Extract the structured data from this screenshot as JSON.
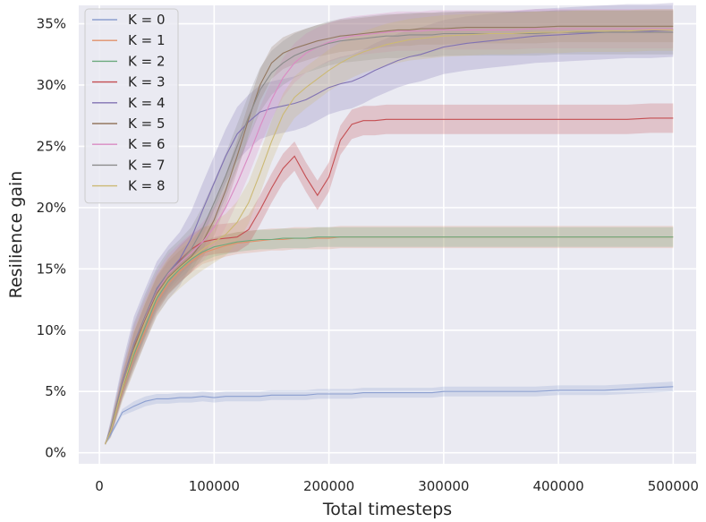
{
  "chart_data": {
    "type": "line",
    "xlabel": "Total timesteps",
    "ylabel": "Resilience gain",
    "xlim": [
      -18000,
      520000
    ],
    "ylim": [
      -0.9,
      36.5
    ],
    "xticks": [
      0,
      100000,
      200000,
      300000,
      400000,
      500000
    ],
    "yticks": [
      0,
      5,
      10,
      15,
      20,
      25,
      30,
      35
    ],
    "ytick_labels": [
      "0%",
      "5%",
      "10%",
      "15%",
      "20%",
      "25%",
      "30%",
      "35%"
    ],
    "grid": true,
    "legend": "top-left",
    "legend_title": "K",
    "x": [
      5000,
      10000,
      20000,
      30000,
      40000,
      50000,
      60000,
      70000,
      80000,
      90000,
      100000,
      110000,
      120000,
      130000,
      140000,
      150000,
      160000,
      170000,
      180000,
      190000,
      200000,
      210000,
      220000,
      230000,
      240000,
      250000,
      260000,
      270000,
      280000,
      290000,
      300000,
      320000,
      340000,
      360000,
      380000,
      400000,
      420000,
      440000,
      460000,
      480000,
      500000
    ],
    "series": [
      {
        "name": "K = 0",
        "color": "#8c9fd0",
        "band": 0.4,
        "values": [
          0.7,
          1.5,
          3.3,
          3.8,
          4.2,
          4.4,
          4.4,
          4.5,
          4.5,
          4.6,
          4.5,
          4.6,
          4.6,
          4.6,
          4.6,
          4.7,
          4.7,
          4.7,
          4.7,
          4.8,
          4.8,
          4.8,
          4.8,
          4.9,
          4.9,
          4.9,
          4.9,
          4.9,
          4.9,
          4.9,
          5.0,
          5.0,
          5.0,
          5.0,
          5.0,
          5.1,
          5.1,
          5.1,
          5.2,
          5.3,
          5.4
        ]
      },
      {
        "name": "K = 1",
        "color": "#e1916a",
        "band": 0.9,
        "values": [
          0.7,
          1.8,
          5.0,
          7.8,
          10.0,
          12.3,
          13.8,
          14.8,
          15.6,
          16.3,
          16.6,
          16.9,
          17.1,
          17.2,
          17.3,
          17.4,
          17.4,
          17.5,
          17.5,
          17.5,
          17.5,
          17.6,
          17.6,
          17.6,
          17.6,
          17.6,
          17.6,
          17.6,
          17.6,
          17.6,
          17.6,
          17.6,
          17.6,
          17.6,
          17.6,
          17.6,
          17.6,
          17.6,
          17.6,
          17.6,
          17.6
        ]
      },
      {
        "name": "K = 2",
        "color": "#6daa7e",
        "band": 0.8,
        "values": [
          0.7,
          1.8,
          5.2,
          8.0,
          10.3,
          12.6,
          14.0,
          15.0,
          15.8,
          16.4,
          16.8,
          17.0,
          17.2,
          17.3,
          17.4,
          17.4,
          17.5,
          17.5,
          17.5,
          17.6,
          17.6,
          17.6,
          17.6,
          17.6,
          17.6,
          17.6,
          17.6,
          17.6,
          17.6,
          17.6,
          17.6,
          17.6,
          17.6,
          17.6,
          17.6,
          17.6,
          17.6,
          17.6,
          17.6,
          17.6,
          17.6
        ]
      },
      {
        "name": "K = 3",
        "color": "#c44e52",
        "band": 1.2,
        "values": [
          0.7,
          1.9,
          5.6,
          8.6,
          11.0,
          13.2,
          14.6,
          15.7,
          16.6,
          17.2,
          17.4,
          17.5,
          17.6,
          18.2,
          19.8,
          21.6,
          23.2,
          24.2,
          22.5,
          21.0,
          22.5,
          25.5,
          26.8,
          27.1,
          27.1,
          27.2,
          27.2,
          27.2,
          27.2,
          27.2,
          27.2,
          27.2,
          27.2,
          27.2,
          27.2,
          27.2,
          27.2,
          27.2,
          27.2,
          27.3,
          27.3
        ]
      },
      {
        "name": "K = 4",
        "color": "#8172b3",
        "band": 2.2,
        "values": [
          0.7,
          2.0,
          5.8,
          8.9,
          11.2,
          13.4,
          14.7,
          15.8,
          17.5,
          19.8,
          22.0,
          24.2,
          26.0,
          27.0,
          27.8,
          28.1,
          28.3,
          28.5,
          28.8,
          29.3,
          29.8,
          30.1,
          30.3,
          30.7,
          31.2,
          31.6,
          32.0,
          32.3,
          32.5,
          32.8,
          33.1,
          33.4,
          33.6,
          33.8,
          34.0,
          34.1,
          34.2,
          34.3,
          34.4,
          34.4,
          34.5
        ]
      },
      {
        "name": "K = 5",
        "color": "#937860",
        "band": 1.3,
        "values": [
          0.7,
          1.9,
          5.4,
          8.5,
          10.9,
          13.0,
          14.3,
          15.2,
          16.0,
          17.2,
          19.0,
          21.4,
          24.2,
          27.2,
          30.0,
          31.8,
          32.6,
          33.0,
          33.3,
          33.6,
          33.8,
          34.0,
          34.1,
          34.2,
          34.3,
          34.4,
          34.5,
          34.5,
          34.6,
          34.6,
          34.6,
          34.7,
          34.7,
          34.7,
          34.7,
          34.8,
          34.8,
          34.8,
          34.8,
          34.8,
          34.8
        ]
      },
      {
        "name": "K = 6",
        "color": "#da8bc3",
        "band": 1.6,
        "values": [
          0.7,
          1.9,
          5.6,
          8.8,
          11.1,
          13.2,
          14.6,
          15.5,
          16.3,
          17.2,
          18.4,
          20.0,
          22.0,
          24.2,
          26.6,
          28.8,
          30.6,
          31.8,
          32.6,
          33.1,
          33.5,
          33.8,
          34.0,
          34.1,
          34.2,
          34.3,
          34.4,
          34.4,
          34.4,
          34.5,
          34.5,
          34.5,
          34.5,
          34.5,
          34.6,
          34.6,
          34.6,
          34.6,
          34.6,
          34.6,
          34.6
        ]
      },
      {
        "name": "K = 7",
        "color": "#8c8c8c",
        "band": 1.8,
        "values": [
          0.7,
          2.0,
          5.7,
          8.8,
          11.2,
          13.3,
          14.7,
          15.6,
          16.6,
          18.3,
          20.4,
          22.6,
          25.0,
          27.4,
          29.6,
          31.0,
          31.8,
          32.4,
          32.8,
          33.1,
          33.4,
          33.6,
          33.7,
          33.8,
          33.9,
          34.0,
          34.0,
          34.1,
          34.1,
          34.1,
          34.2,
          34.2,
          34.2,
          34.2,
          34.2,
          34.3,
          34.3,
          34.3,
          34.3,
          34.3,
          34.3
        ]
      },
      {
        "name": "K = 8",
        "color": "#ccb974",
        "band": 1.7,
        "values": [
          0.7,
          1.8,
          5.3,
          8.3,
          10.7,
          12.8,
          14.2,
          15.1,
          15.9,
          16.6,
          17.2,
          17.8,
          18.8,
          20.4,
          22.8,
          25.4,
          27.6,
          29.0,
          29.8,
          30.5,
          31.2,
          31.8,
          32.3,
          32.7,
          33.0,
          33.3,
          33.5,
          33.7,
          33.8,
          33.9,
          34.0,
          34.1,
          34.2,
          34.2,
          34.3,
          34.3,
          34.4,
          34.4,
          34.4,
          34.5,
          34.5
        ]
      }
    ]
  }
}
